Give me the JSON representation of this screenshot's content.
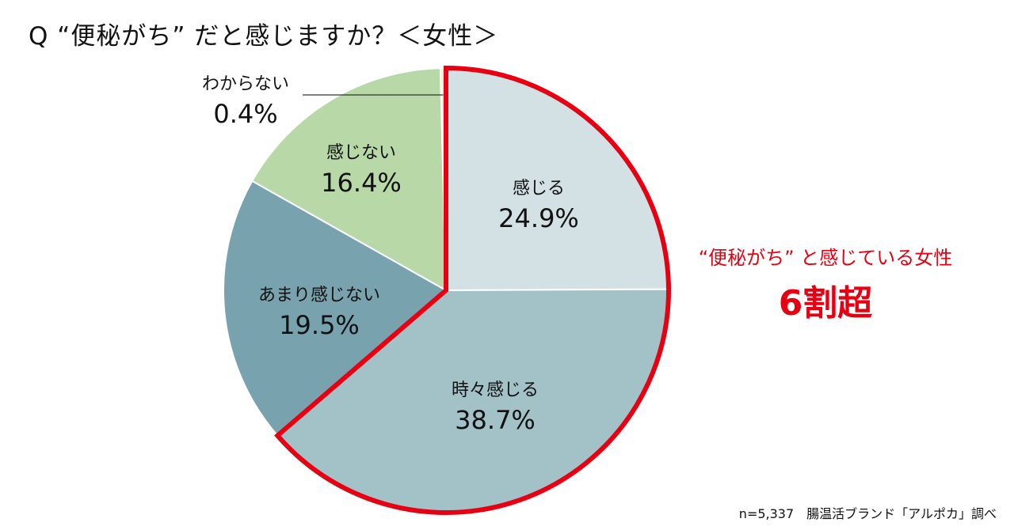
{
  "title": "Q “便秘がち” だと感じますか？＜女性＞",
  "chart_data": {
    "type": "pie",
    "slices": [
      {
        "label": "感じる",
        "pct_text": "24.9%",
        "value": 24.9,
        "color": "#d3e0e4"
      },
      {
        "label": "時々感じる",
        "pct_text": "38.7%",
        "value": 38.7,
        "color": "#a3c2c8"
      },
      {
        "label": "あまり感じない",
        "pct_text": "19.5%",
        "value": 19.5,
        "color": "#78a2ae"
      },
      {
        "label": "感じない",
        "pct_text": "16.4%",
        "value": 16.4,
        "color": "#b8d8a8"
      },
      {
        "label": "わからない",
        "pct_text": "0.4%",
        "value": 0.4,
        "color": "#e8f0e0"
      }
    ],
    "highlight": {
      "slices": [
        "感じる",
        "時々感じる"
      ],
      "color": "#e60012"
    }
  },
  "callout": {
    "line1": "“便秘がち” と感じている女性",
    "line2": "6割超"
  },
  "source": "n=5,337　腸温活ブランド「アルポカ」調べ"
}
